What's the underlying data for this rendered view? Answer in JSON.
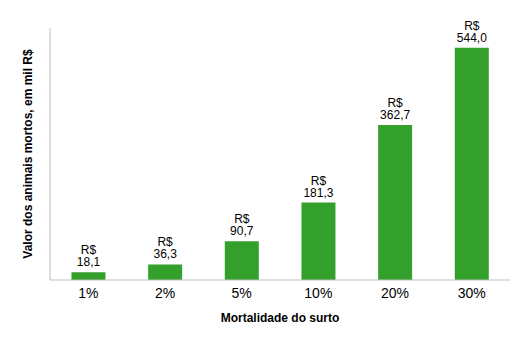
{
  "chart_data": {
    "type": "bar",
    "x_label": "Mortalidade do surto",
    "y_label": "Valor dos animais mortos, em mil R$",
    "categories": [
      "1%",
      "2%",
      "5%",
      "10%",
      "20%",
      "30%"
    ],
    "values": [
      18.1,
      36.3,
      90.7,
      181.3,
      362.7,
      544.0
    ],
    "value_labels": [
      "R$ 18,1",
      "R$ 36,3",
      "R$ 90,7",
      "R$ 181,3",
      "R$ 362,7",
      "R$ 544,0"
    ],
    "color": "#34a02c",
    "ylim": [
      0,
      590
    ],
    "yticks": [],
    "grid": false,
    "data_labels": true,
    "tick_labels": "x"
  }
}
